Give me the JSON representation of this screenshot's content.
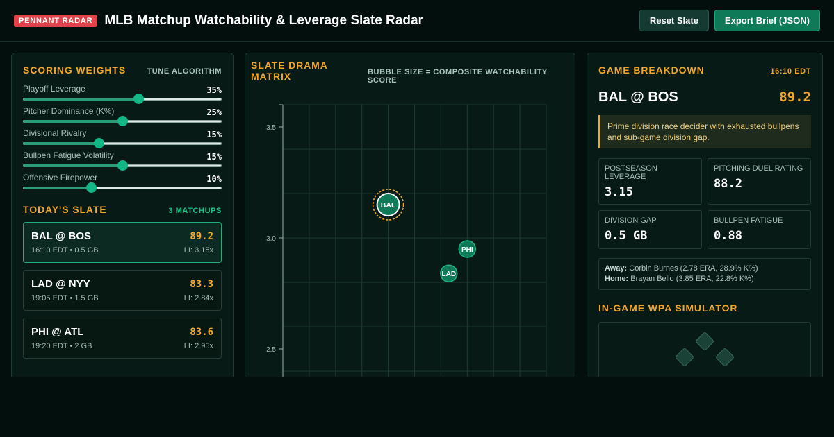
{
  "header": {
    "badge": "PENNANT RADAR",
    "title": "MLB Matchup Watchability & Leverage Slate Radar",
    "reset_label": "Reset Slate",
    "export_label": "Export Brief (JSON)"
  },
  "weights": {
    "title": "SCORING WEIGHTS",
    "action": "TUNE ALGORITHM",
    "items": [
      {
        "label": "Playoff Leverage",
        "value": "35%",
        "level": 0.58
      },
      {
        "label": "Pitcher Dominance (K%)",
        "value": "25%",
        "level": 0.5
      },
      {
        "label": "Divisional Rivalry",
        "value": "15%",
        "level": 0.38
      },
      {
        "label": "Bullpen Fatigue Volatility",
        "value": "15%",
        "level": 0.5
      },
      {
        "label": "Offensive Firepower",
        "value": "10%",
        "level": 0.34
      }
    ]
  },
  "slate": {
    "title": "TODAY'S SLATE",
    "count": "3 MATCHUPS",
    "games": [
      {
        "teams": "BAL @ BOS",
        "score": "89.2",
        "meta": "16:10 EDT • 0.5 GB",
        "li": "LI: 3.15x",
        "active": true
      },
      {
        "teams": "LAD @ NYY",
        "score": "83.3",
        "meta": "19:05 EDT • 1.5 GB",
        "li": "LI: 2.84x",
        "active": false
      },
      {
        "teams": "PHI @ ATL",
        "score": "83.6",
        "meta": "19:20 EDT • 2 GB",
        "li": "LI: 2.95x",
        "active": false
      }
    ]
  },
  "matrix": {
    "title": "SLATE DRAMA MATRIX",
    "subtitle": "BUBBLE SIZE = COMPOSITE WATCHABILITY SCORE"
  },
  "chart_data": {
    "type": "scatter",
    "title": "SLATE DRAMA MATRIX",
    "subtitle": "BUBBLE SIZE = COMPOSITE WATCHABILITY SCORE",
    "y_ticks": [
      "3.5",
      "3.0",
      "2.5"
    ],
    "ylim": [
      2.4,
      3.6
    ],
    "xlim": [
      0,
      10
    ],
    "grid": true,
    "points": [
      {
        "label": "BAL",
        "x": 4.0,
        "y": 3.15,
        "size": 89.2,
        "selected": true
      },
      {
        "label": "PHI",
        "x": 7.0,
        "y": 2.95,
        "size": 83.6,
        "selected": false
      },
      {
        "label": "LAD",
        "x": 6.3,
        "y": 2.84,
        "size": 83.3,
        "selected": false
      }
    ]
  },
  "breakdown": {
    "title": "GAME BREAKDOWN",
    "time": "16:10 EDT",
    "teams": "BAL @ BOS",
    "score": "89.2",
    "note": "Prime division race decider with exhausted bullpens and sub-game division gap.",
    "stats": [
      {
        "label": "POSTSEASON LEVERAGE",
        "value": "3.15"
      },
      {
        "label": "PITCHING DUEL RATING",
        "value": "88.2"
      },
      {
        "label": "DIVISION GAP",
        "value": "0.5 GB"
      },
      {
        "label": "BULLPEN FATIGUE",
        "value": "0.88"
      }
    ],
    "away_label": "Away:",
    "away": "Corbin Burnes (2.78 ERA, 28.9% K%)",
    "home_label": "Home:",
    "home": "Brayan Bello (3.85 ERA, 22.8% K%)"
  },
  "wpa": {
    "title": "IN-GAME WPA SIMULATOR"
  },
  "colors": {
    "accent": "#f2a72b",
    "brand_red": "#e2434b",
    "green": "#12b785",
    "background": "#030f0d"
  }
}
